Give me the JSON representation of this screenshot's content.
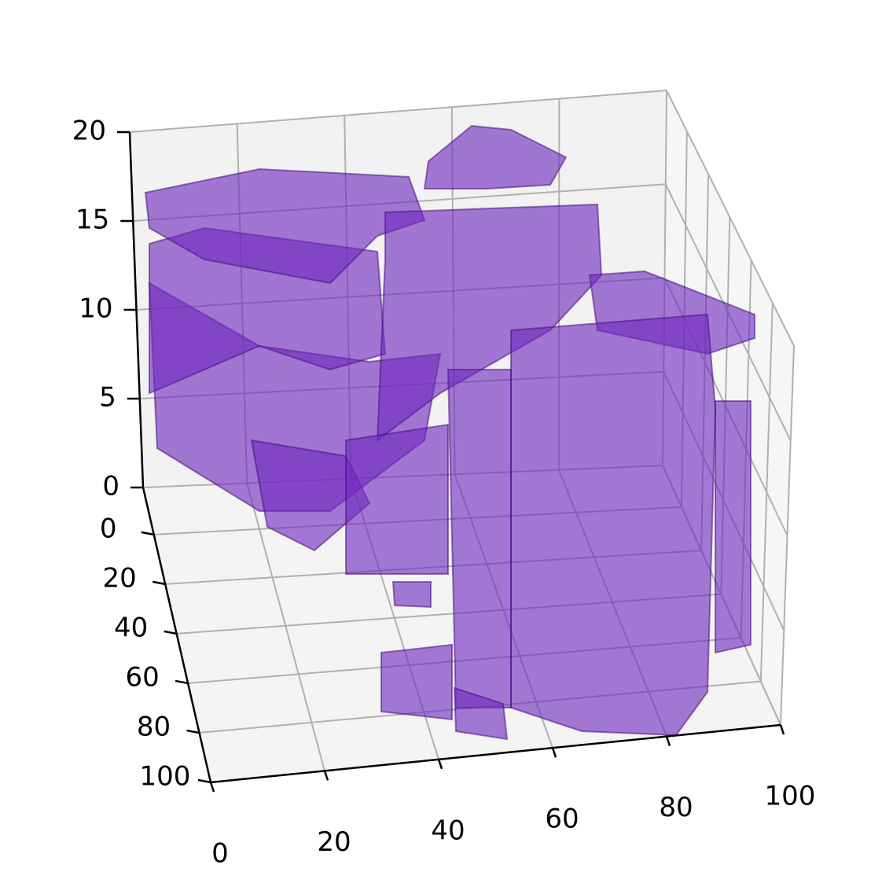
{
  "chart_data": {
    "type": "voxels",
    "color": "#7028be",
    "xlim": [
      0,
      100
    ],
    "xticks": [
      0,
      20,
      40,
      60,
      80,
      100
    ],
    "ylim": [
      -19,
      100
    ],
    "yticks": [
      0,
      20,
      40,
      60,
      80,
      100
    ],
    "zlim": [
      0,
      20
    ],
    "zticks": [
      0,
      5,
      10,
      15,
      20
    ],
    "grid": true
  }
}
